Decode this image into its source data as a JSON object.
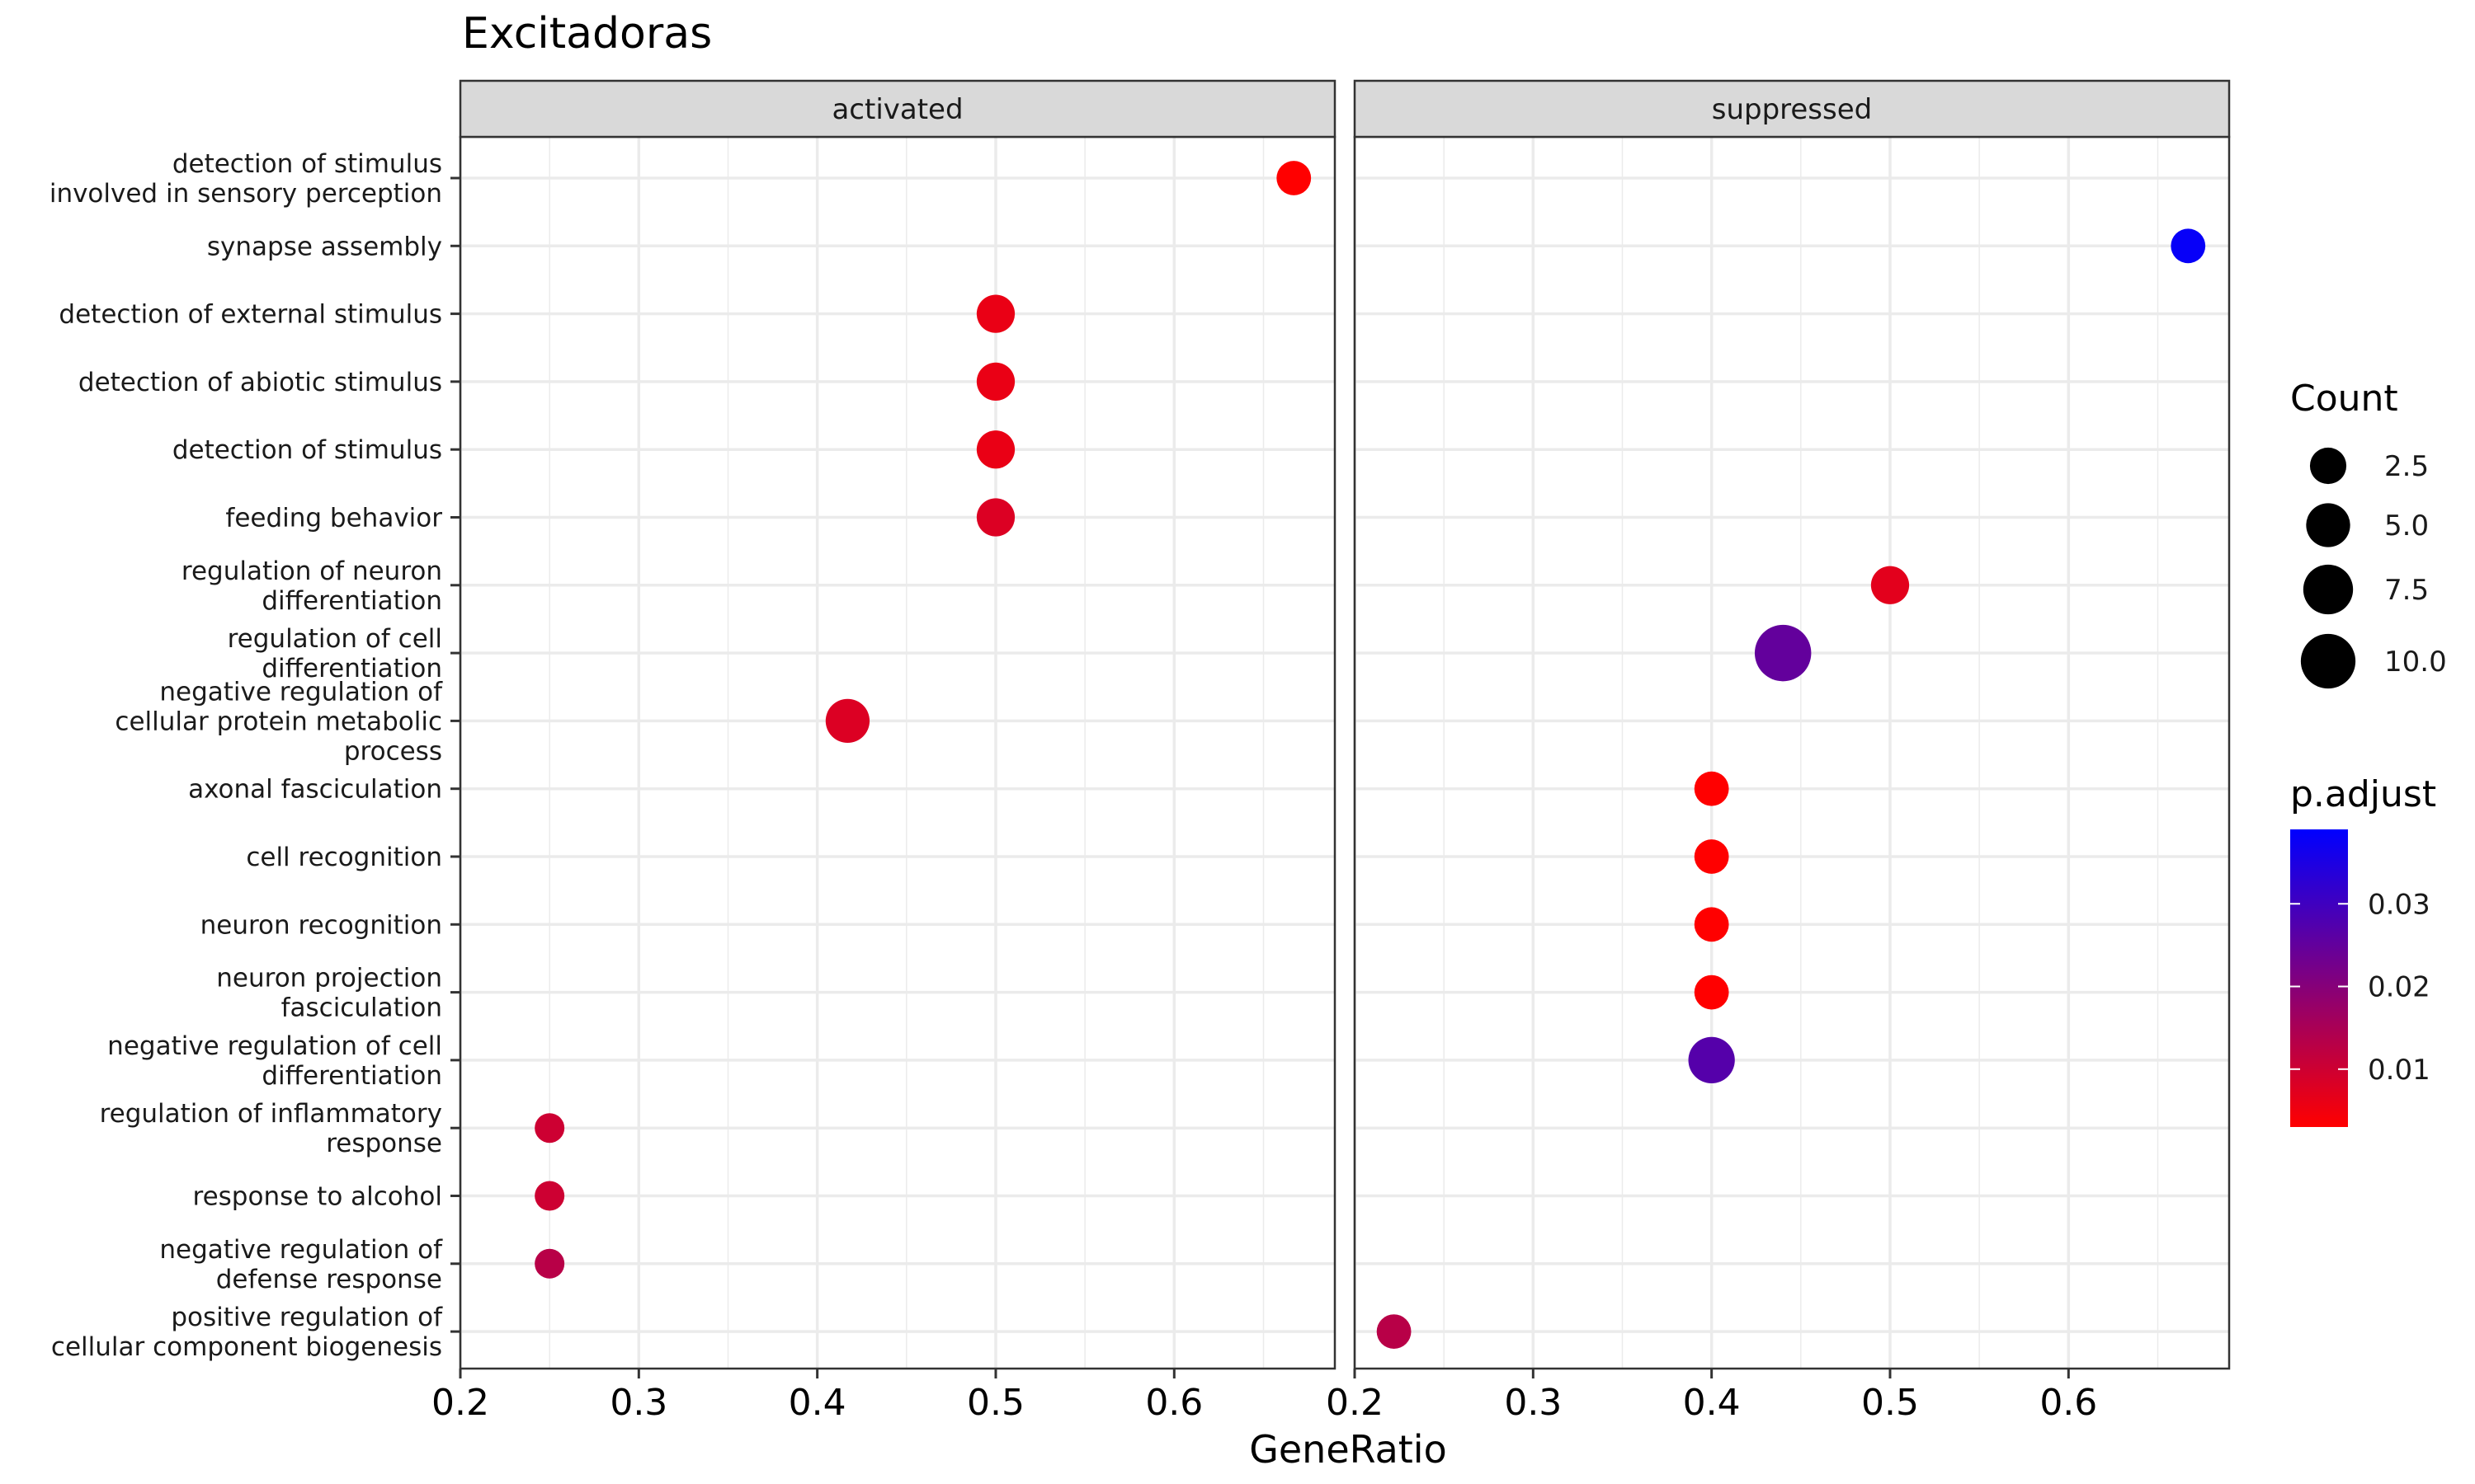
{
  "chart_data": {
    "type": "scatter",
    "title": "Excitadoras",
    "xlabel": "GeneRatio",
    "ylabel": "",
    "xlim": [
      0.2,
      0.69
    ],
    "x_ticks": [
      "0.2",
      "0.3",
      "0.4",
      "0.5",
      "0.6"
    ],
    "x_tick_values": [
      0.2,
      0.3,
      0.4,
      0.5,
      0.6
    ],
    "categories": [
      [
        "detection of stimulus",
        "involved in sensory perception"
      ],
      [
        "synapse assembly"
      ],
      [
        "detection of external stimulus"
      ],
      [
        "detection of abiotic stimulus"
      ],
      [
        "detection of stimulus"
      ],
      [
        "feeding behavior"
      ],
      [
        "regulation of neuron",
        "differentiation"
      ],
      [
        "regulation of cell",
        "differentiation"
      ],
      [
        "negative regulation of",
        "cellular protein metabolic",
        "process"
      ],
      [
        "axonal fasciculation"
      ],
      [
        "cell recognition"
      ],
      [
        "neuron recognition"
      ],
      [
        "neuron projection",
        "fasciculation"
      ],
      [
        "negative regulation of cell",
        "differentiation"
      ],
      [
        "regulation of inflammatory",
        "response"
      ],
      [
        "response to alcohol"
      ],
      [
        "negative regulation of",
        "defense response"
      ],
      [
        "positive regulation of",
        "cellular component biogenesis"
      ]
    ],
    "panels": [
      {
        "name": "activated",
        "points": [
          {
            "cat": 0,
            "x": 0.667,
            "count": 2,
            "padj": 0.003
          },
          {
            "cat": 2,
            "x": 0.5,
            "count": 3,
            "padj": 0.006
          },
          {
            "cat": 3,
            "x": 0.5,
            "count": 3,
            "padj": 0.006
          },
          {
            "cat": 4,
            "x": 0.5,
            "count": 3,
            "padj": 0.006
          },
          {
            "cat": 5,
            "x": 0.5,
            "count": 3,
            "padj": 0.008
          },
          {
            "cat": 8,
            "x": 0.417,
            "count": 5,
            "padj": 0.008
          },
          {
            "cat": 14,
            "x": 0.25,
            "count": 1,
            "padj": 0.01
          },
          {
            "cat": 15,
            "x": 0.25,
            "count": 1,
            "padj": 0.01
          },
          {
            "cat": 16,
            "x": 0.25,
            "count": 1,
            "padj": 0.013
          }
        ]
      },
      {
        "name": "suppressed",
        "points": [
          {
            "cat": 1,
            "x": 0.667,
            "count": 2,
            "padj": 0.038
          },
          {
            "cat": 6,
            "x": 0.5,
            "count": 3,
            "padj": 0.007
          },
          {
            "cat": 7,
            "x": 0.44,
            "count": 11,
            "padj": 0.025
          },
          {
            "cat": 9,
            "x": 0.4,
            "count": 2,
            "padj": 0.003
          },
          {
            "cat": 10,
            "x": 0.4,
            "count": 2,
            "padj": 0.003
          },
          {
            "cat": 11,
            "x": 0.4,
            "count": 2,
            "padj": 0.003
          },
          {
            "cat": 12,
            "x": 0.4,
            "count": 2,
            "padj": 0.003
          },
          {
            "cat": 13,
            "x": 0.4,
            "count": 6,
            "padj": 0.027
          },
          {
            "cat": 17,
            "x": 0.222,
            "count": 2,
            "padj": 0.013
          }
        ]
      }
    ],
    "size_legend": {
      "title": "Count",
      "labels": [
        "2.5",
        "5.0",
        "7.5",
        "10.0"
      ],
      "values": [
        2.5,
        5.0,
        7.5,
        10.0
      ]
    },
    "color_legend": {
      "title": "p.adjust",
      "labels": [
        "0.01",
        "0.02",
        "0.03"
      ],
      "values": [
        0.01,
        0.02,
        0.03
      ],
      "range": [
        0.003,
        0.039
      ],
      "low_color": "#FF0000",
      "high_color": "#0000FF"
    },
    "colors": {
      "panel_strip": "#D9D9D9",
      "grid_major": "#EBEBEB",
      "border": "#333333"
    },
    "grid": true,
    "legend_position": "right"
  }
}
